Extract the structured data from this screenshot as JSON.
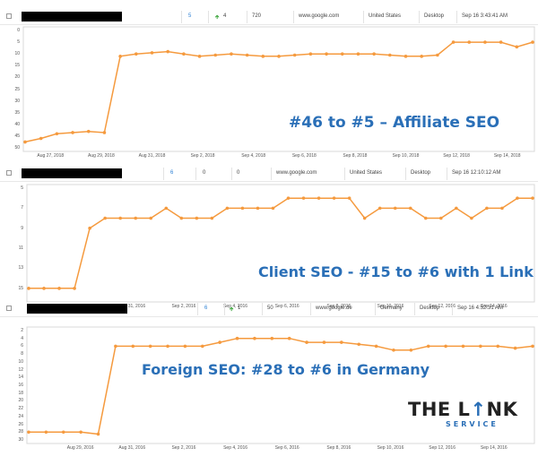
{
  "rows": [
    {
      "rank": "5",
      "change": "4",
      "volume": "720",
      "engine": "www.google.com",
      "location": "United States",
      "device": "Desktop",
      "updated": "Sep 16 3:43:41 AM"
    },
    {
      "rank": "6",
      "change": "0",
      "volume": "0",
      "engine": "www.google.com",
      "location": "United States",
      "device": "Desktop",
      "updated": "Sep 16 12:10:12 AM"
    },
    {
      "rank": "6",
      "change": "1",
      "volume": "50",
      "engine": "www.google.de",
      "location": "Germany",
      "device": "Desktop",
      "updated": "Sep 16 4:52:31 AM"
    }
  ],
  "captions": [
    "#46 to #5 – Affiliate SEO",
    "Client SEO - #15 to #6 with 1 Link",
    "Foreign SEO: #28 to #6 in Germany"
  ],
  "logo": {
    "main_a": "THE L",
    "main_b": "NK",
    "sub": "SERVICE"
  },
  "colors": {
    "line": "#f59a3e",
    "caption": "#2a6fb7",
    "rank": "#2a7fd4",
    "up_arrow": "#3aa53a"
  },
  "icons": {
    "up_arrow": "up-arrow-icon",
    "checkbox": "checkbox-icon"
  },
  "chart_data": [
    {
      "type": "line",
      "title": "",
      "y_reversed": true,
      "ylim": [
        0,
        50
      ],
      "yticks": [
        "0",
        "5",
        "10",
        "15",
        "20",
        "25",
        "30",
        "35",
        "40",
        "45",
        "50"
      ],
      "xticks": [
        "Aug 27, 2018",
        "Aug 29, 2018",
        "Aug 31, 2018",
        "Sep 2, 2018",
        "Sep 4, 2018",
        "Sep 6, 2018",
        "Sep 8, 2018",
        "Sep 10, 2018",
        "Sep 12, 2018",
        "Sep 14, 2018"
      ],
      "x_start_day": 26,
      "values": [
        47.5,
        46,
        44,
        43.5,
        43,
        43.5,
        11,
        10,
        9.5,
        9,
        10,
        11,
        10.5,
        10,
        10.5,
        11,
        11,
        10.5,
        10,
        10,
        10,
        10,
        10,
        10.5,
        11,
        11,
        10.5,
        5,
        5,
        5,
        5,
        7,
        5
      ]
    },
    {
      "type": "line",
      "title": "",
      "y_reversed": true,
      "ylim": [
        5,
        16
      ],
      "yticks": [
        "5",
        "7",
        "9",
        "11",
        "13",
        "15"
      ],
      "xticks": [
        "Aug 29, 2016",
        "Aug 31, 2016",
        "Sep 2, 2016",
        "Sep 4, 2016",
        "Sep 6, 2016",
        "Sep 8, 2016",
        "Sep 10, 2016",
        "Sep 12, 2016",
        "Sep 14, 2016"
      ],
      "x_start_day": 27,
      "values": [
        15,
        15,
        15,
        15,
        9,
        8,
        8,
        8,
        8,
        7,
        8,
        8,
        8,
        7,
        7,
        7,
        7,
        6,
        6,
        6,
        6,
        6,
        8,
        7,
        7,
        7,
        8,
        8,
        7,
        8,
        7,
        7,
        6,
        6
      ]
    },
    {
      "type": "line",
      "title": "",
      "y_reversed": true,
      "ylim": [
        2,
        30
      ],
      "yticks": [
        "2",
        "4",
        "6",
        "8",
        "10",
        "12",
        "14",
        "16",
        "18",
        "20",
        "22",
        "24",
        "26",
        "28",
        "30"
      ],
      "xticks": [
        "Aug 29, 2016",
        "Aug 31, 2016",
        "Sep 2, 2016",
        "Sep 4, 2016",
        "Sep 6, 2016",
        "Sep 8, 2016",
        "Sep 10, 2016",
        "Sep 12, 2016",
        "Sep 14, 2016"
      ],
      "x_start_day": 27,
      "values": [
        28,
        28,
        28,
        28,
        28.5,
        6,
        6,
        6,
        6,
        6,
        6,
        5,
        4,
        4,
        4,
        4,
        5,
        5,
        5,
        5.5,
        6,
        7,
        7,
        6,
        6,
        6,
        6,
        6,
        6.5,
        6
      ]
    }
  ]
}
